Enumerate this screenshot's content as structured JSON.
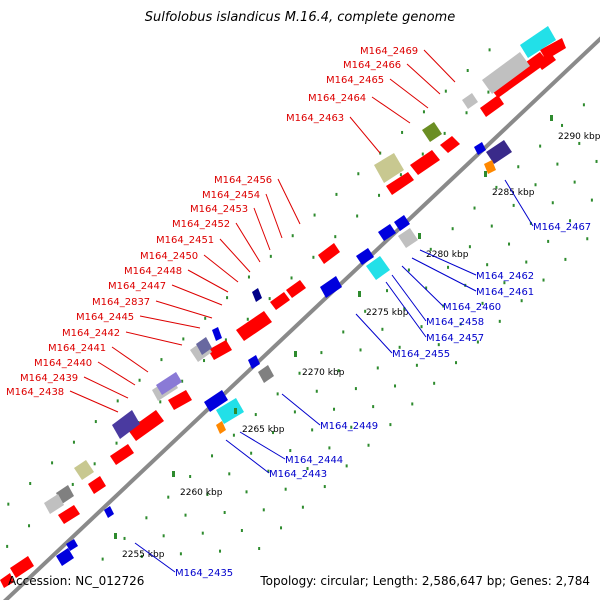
{
  "title": "Sulfolobus islandicus M.16.4, complete genome",
  "footer": {
    "accession": "Accession: NC_012726",
    "summary": "Topology: circular; Length: 2,586,647 bp; Genes: 2,784"
  },
  "colors": {
    "backbone": "#8a8a8a",
    "forward_label": "#dd0000",
    "reverse_label": "#0000cc",
    "tick": "#2e8b2e",
    "forward_gene": "#ff0000",
    "reverse_gene": "#0000dd"
  },
  "kbp_ticks": [
    "2255 kbp",
    "2260 kbp",
    "2265 kbp",
    "2270 kbp",
    "2275 kbp",
    "2280 kbp",
    "2285 kbp",
    "2290 kbp"
  ],
  "forward_labels": [
    "M164_2469",
    "M164_2466",
    "M164_2465",
    "M164_2464",
    "M164_2463",
    "M164_2456",
    "M164_2454",
    "M164_2453",
    "M164_2452",
    "M164_2451",
    "M164_2450",
    "M164_2448",
    "M164_2447",
    "M164_2837",
    "M164_2445",
    "M164_2442",
    "M164_2441",
    "M164_2440",
    "M164_2439",
    "M164_2438"
  ],
  "reverse_labels": [
    "M164_2467",
    "M164_2462",
    "M164_2461",
    "M164_2460",
    "M164_2458",
    "M164_2457",
    "M164_2455",
    "M164_2449",
    "M164_2444",
    "M164_2443",
    "M164_2435"
  ]
}
